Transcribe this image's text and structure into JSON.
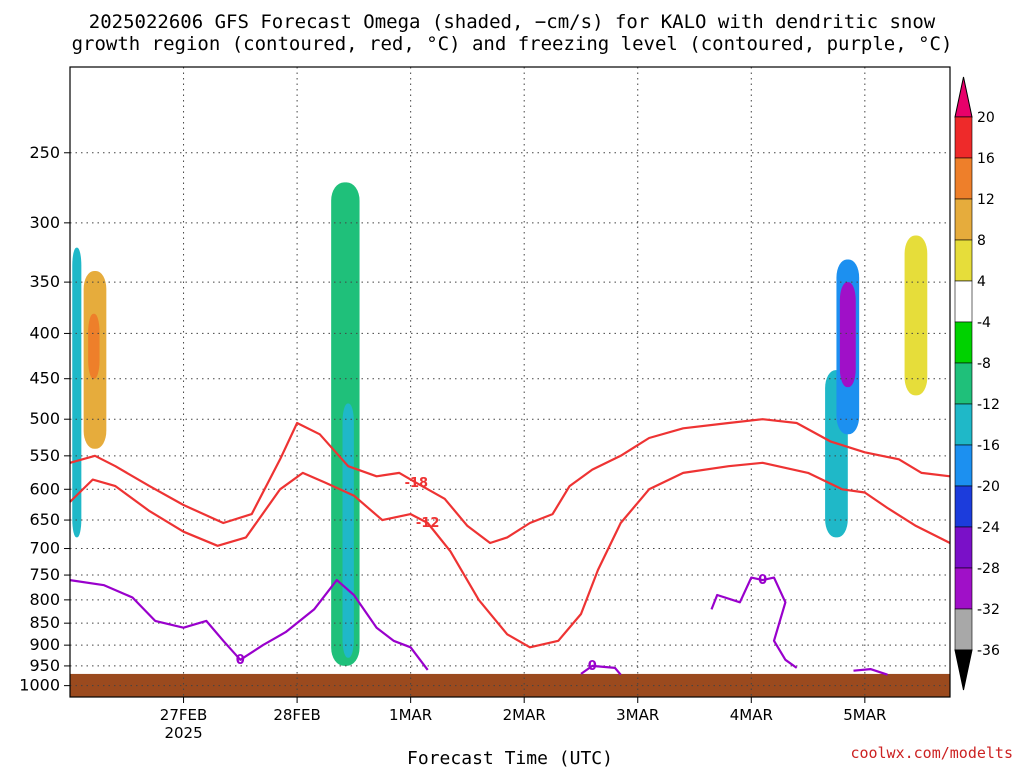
{
  "title_line1": "2025022606 GFS Forecast Omega (shaded, −cm/s) for KALO with dendritic snow",
  "title_line2": "growth region (contoured, red, °C) and freezing level (contoured, purple, °C)",
  "xlabel": "Forecast Time (UTC)",
  "credit": "coolwx.com/modelts",
  "colors": {
    "dgz": "#ee3333",
    "freezing": "#9900cc",
    "ground": "#9b4a1e"
  },
  "chart_data": {
    "type": "heatmap",
    "title": "2025022606 GFS Forecast Omega (shaded, −cm/s) for KALO with dendritic snow growth region (contoured, red, °C) and freezing level (contoured, purple, °C)",
    "xlabel": "Forecast Time (UTC)",
    "ylabel": "",
    "x_ticks": [
      {
        "day": 1.0,
        "label": "27FEB",
        "sub": "2025"
      },
      {
        "day": 2.0,
        "label": "28FEB",
        "sub": ""
      },
      {
        "day": 3.0,
        "label": "1MAR",
        "sub": ""
      },
      {
        "day": 4.0,
        "label": "2MAR",
        "sub": ""
      },
      {
        "day": 5.0,
        "label": "3MAR",
        "sub": ""
      },
      {
        "day": 6.0,
        "label": "4MAR",
        "sub": ""
      },
      {
        "day": 7.0,
        "label": "5MAR",
        "sub": ""
      }
    ],
    "xlim": [
      0.0,
      7.75
    ],
    "y_ticks": [
      250,
      300,
      350,
      400,
      450,
      500,
      550,
      600,
      650,
      700,
      750,
      800,
      850,
      900,
      950,
      1000
    ],
    "ylim": [
      1030,
      200
    ],
    "surface_pressure": 970,
    "grid": true,
    "colorbar": {
      "labels": [
        "20",
        "16",
        "12",
        "8",
        "4",
        "-4",
        "-8",
        "-12",
        "-16",
        "-20",
        "-24",
        "-28",
        "-32",
        "-36"
      ],
      "colors": [
        "#e8006a",
        "#ee2a2a",
        "#ee7f2a",
        "#e6ac3c",
        "#e6dd3a",
        "#ffffff",
        "#00d200",
        "#1fc07a",
        "#1fb8c8",
        "#1c90f0",
        "#1c3cdc",
        "#7a10c8",
        "#a010c8",
        "#a8a8a8",
        "#000000"
      ]
    },
    "contours": [
      {
        "label": "-18",
        "color": "red",
        "points": [
          [
            0,
            560
          ],
          [
            0.22,
            550
          ],
          [
            0.4,
            565
          ],
          [
            0.7,
            595
          ],
          [
            1.0,
            625
          ],
          [
            1.35,
            655
          ],
          [
            1.6,
            640
          ],
          [
            1.85,
            555
          ],
          [
            2.0,
            505
          ],
          [
            2.2,
            520
          ],
          [
            2.45,
            565
          ],
          [
            2.7,
            580
          ],
          [
            2.9,
            575
          ],
          [
            3.05,
            590
          ],
          [
            3.3,
            615
          ],
          [
            3.5,
            660
          ],
          [
            3.7,
            690
          ],
          [
            3.85,
            680
          ],
          [
            4.05,
            655
          ],
          [
            4.25,
            640
          ],
          [
            4.4,
            595
          ],
          [
            4.6,
            570
          ],
          [
            4.85,
            550
          ],
          [
            5.1,
            525
          ],
          [
            5.4,
            512
          ],
          [
            5.8,
            505
          ],
          [
            6.1,
            500
          ],
          [
            6.4,
            505
          ],
          [
            6.7,
            530
          ],
          [
            7.0,
            545
          ],
          [
            7.3,
            555
          ],
          [
            7.5,
            575
          ],
          [
            7.75,
            580
          ]
        ]
      },
      {
        "label": "-12",
        "color": "red",
        "points": [
          [
            0,
            620
          ],
          [
            0.2,
            585
          ],
          [
            0.4,
            595
          ],
          [
            0.7,
            635
          ],
          [
            1.0,
            670
          ],
          [
            1.3,
            695
          ],
          [
            1.55,
            680
          ],
          [
            1.85,
            600
          ],
          [
            2.05,
            575
          ],
          [
            2.25,
            590
          ],
          [
            2.5,
            610
          ],
          [
            2.75,
            650
          ],
          [
            3.0,
            640
          ],
          [
            3.15,
            655
          ],
          [
            3.35,
            705
          ],
          [
            3.6,
            800
          ],
          [
            3.85,
            875
          ],
          [
            4.05,
            905
          ],
          [
            4.3,
            890
          ],
          [
            4.5,
            830
          ],
          [
            4.65,
            740
          ],
          [
            4.85,
            655
          ],
          [
            5.1,
            600
          ],
          [
            5.4,
            575
          ],
          [
            5.8,
            565
          ],
          [
            6.1,
            560
          ],
          [
            6.5,
            575
          ],
          [
            6.8,
            600
          ],
          [
            7.0,
            605
          ],
          [
            7.2,
            630
          ],
          [
            7.45,
            660
          ],
          [
            7.75,
            690
          ]
        ]
      },
      {
        "label": "0",
        "color": "purple",
        "points": [
          [
            0,
            760
          ],
          [
            0.3,
            770
          ],
          [
            0.55,
            795
          ],
          [
            0.75,
            845
          ],
          [
            1.0,
            860
          ],
          [
            1.2,
            845
          ],
          [
            1.35,
            890
          ],
          [
            1.5,
            935
          ],
          [
            1.7,
            900
          ],
          [
            1.9,
            870
          ],
          [
            2.15,
            820
          ],
          [
            2.35,
            760
          ],
          [
            2.5,
            790
          ],
          [
            2.7,
            860
          ],
          [
            2.85,
            890
          ],
          [
            3.0,
            905
          ],
          [
            3.15,
            960
          ]
        ]
      },
      {
        "label": "0",
        "color": "purple",
        "points": [
          [
            5.65,
            820
          ],
          [
            5.7,
            790
          ],
          [
            5.9,
            805
          ],
          [
            6.0,
            755
          ],
          [
            6.1,
            760
          ],
          [
            6.2,
            755
          ],
          [
            6.3,
            805
          ],
          [
            6.2,
            890
          ],
          [
            6.3,
            935
          ],
          [
            6.4,
            955
          ]
        ]
      },
      {
        "label": "0",
        "color": "purple",
        "points": [
          [
            4.5,
            970
          ],
          [
            4.6,
            950
          ],
          [
            4.8,
            955
          ],
          [
            4.85,
            972
          ]
        ]
      },
      {
        "label": "",
        "color": "purple",
        "points": [
          [
            6.9,
            962
          ],
          [
            7.05,
            958
          ],
          [
            7.2,
            972
          ]
        ]
      }
    ],
    "omega_features": [
      {
        "x": [
          0.02,
          0.1
        ],
        "p": [
          320,
          680
        ],
        "level": "-12"
      },
      {
        "x": [
          0.12,
          0.32
        ],
        "p": [
          340,
          540
        ],
        "level": "12"
      },
      {
        "x": [
          0.16,
          0.26
        ],
        "p": [
          380,
          450
        ],
        "level": "16"
      },
      {
        "x": [
          2.3,
          2.55
        ],
        "p": [
          270,
          950
        ],
        "level": "-8"
      },
      {
        "x": [
          2.4,
          2.5
        ],
        "p": [
          480,
          930
        ],
        "level": "-12"
      },
      {
        "x": [
          6.65,
          6.85
        ],
        "p": [
          440,
          680
        ],
        "level": "-12"
      },
      {
        "x": [
          6.75,
          6.95
        ],
        "p": [
          330,
          520
        ],
        "level": "-16"
      },
      {
        "x": [
          6.78,
          6.92
        ],
        "p": [
          350,
          460
        ],
        "level": "-28"
      },
      {
        "x": [
          7.35,
          7.55
        ],
        "p": [
          310,
          470
        ],
        "level": "8"
      }
    ]
  }
}
